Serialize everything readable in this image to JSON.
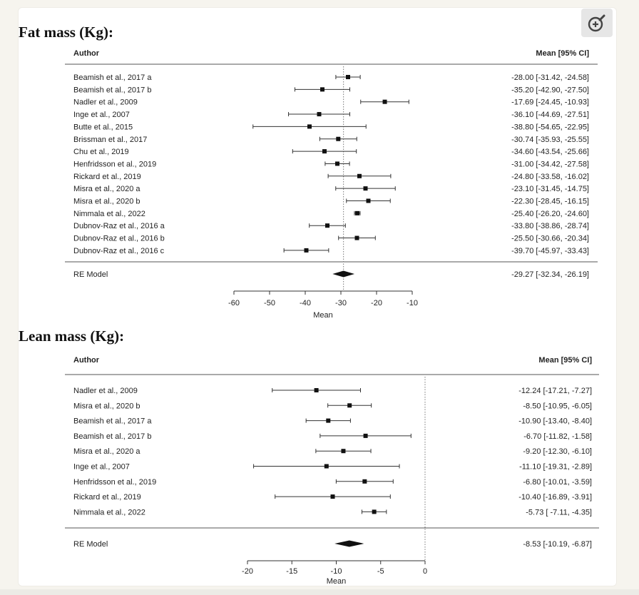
{
  "zoom_button": {
    "icon": "zoom-in-icon"
  },
  "chart_data": [
    {
      "type": "forest",
      "title": "Fat mass (Kg):",
      "col_author": "Author",
      "col_ci": "Mean [95% CI]",
      "xlabel": "Mean",
      "xlim": [
        -60,
        -10
      ],
      "xticks": [
        -60,
        -50,
        -40,
        -30,
        -20,
        -10
      ],
      "reference_line": -29.27,
      "studies": [
        {
          "author": "Beamish et al., 2017 a",
          "mean": -28.0,
          "lo": -31.42,
          "hi": -24.58,
          "label": "-28.00 [-31.42, -24.58]"
        },
        {
          "author": "Beamish et al., 2017 b",
          "mean": -35.2,
          "lo": -42.9,
          "hi": -27.5,
          "label": "-35.20 [-42.90, -27.50]"
        },
        {
          "author": "Nadler et al., 2009",
          "mean": -17.69,
          "lo": -24.45,
          "hi": -10.93,
          "label": "-17.69 [-24.45, -10.93]"
        },
        {
          "author": "Inge et al., 2007",
          "mean": -36.1,
          "lo": -44.69,
          "hi": -27.51,
          "label": "-36.10 [-44.69, -27.51]"
        },
        {
          "author": "Butte et al., 2015",
          "mean": -38.8,
          "lo": -54.65,
          "hi": -22.95,
          "label": "-38.80 [-54.65, -22.95]"
        },
        {
          "author": "Brissman et al., 2017",
          "mean": -30.74,
          "lo": -35.93,
          "hi": -25.55,
          "label": "-30.74 [-35.93, -25.55]"
        },
        {
          "author": "Chu et al., 2019",
          "mean": -34.6,
          "lo": -43.54,
          "hi": -25.66,
          "label": "-34.60 [-43.54, -25.66]"
        },
        {
          "author": "Henfridsson et al., 2019",
          "mean": -31.0,
          "lo": -34.42,
          "hi": -27.58,
          "label": "-31.00 [-34.42, -27.58]"
        },
        {
          "author": "Rickard et al., 2019",
          "mean": -24.8,
          "lo": -33.58,
          "hi": -16.02,
          "label": "-24.80 [-33.58, -16.02]"
        },
        {
          "author": "Misra et al., 2020 a",
          "mean": -23.1,
          "lo": -31.45,
          "hi": -14.75,
          "label": "-23.10 [-31.45, -14.75]"
        },
        {
          "author": "Misra et al., 2020 b",
          "mean": -22.3,
          "lo": -28.45,
          "hi": -16.15,
          "label": "-22.30 [-28.45, -16.15]"
        },
        {
          "author": "Nimmala et al., 2022",
          "mean": -25.4,
          "lo": -26.2,
          "hi": -24.6,
          "label": "-25.40 [-26.20, -24.60]"
        },
        {
          "author": "Dubnov-Raz et al., 2016 a",
          "mean": -33.8,
          "lo": -38.86,
          "hi": -28.74,
          "label": "-33.80 [-38.86, -28.74]"
        },
        {
          "author": "Dubnov-Raz et al., 2016 b",
          "mean": -25.5,
          "lo": -30.66,
          "hi": -20.34,
          "label": "-25.50 [-30.66, -20.34]"
        },
        {
          "author": "Dubnov-Raz et al., 2016 c",
          "mean": -39.7,
          "lo": -45.97,
          "hi": -33.43,
          "label": "-39.70 [-45.97, -33.43]"
        }
      ],
      "summary": {
        "author": "RE Model",
        "mean": -29.27,
        "lo": -32.34,
        "hi": -26.19,
        "label": "-29.27 [-32.34, -26.19]"
      }
    },
    {
      "type": "forest",
      "title": "Lean mass (Kg):",
      "col_author": "Author",
      "col_ci": "Mean [95% CI]",
      "xlabel": "Mean",
      "xlim": [
        -20,
        0
      ],
      "xticks": [
        -20,
        -15,
        -10,
        -5,
        0
      ],
      "reference_line": 0,
      "studies": [
        {
          "author": "Nadler et al., 2009",
          "mean": -12.24,
          "lo": -17.21,
          "hi": -7.27,
          "label": "-12.24 [-17.21, -7.27]"
        },
        {
          "author": "Misra et al., 2020 b",
          "mean": -8.5,
          "lo": -10.95,
          "hi": -6.05,
          "label": "-8.50 [-10.95, -6.05]"
        },
        {
          "author": "Beamish et al., 2017 a",
          "mean": -10.9,
          "lo": -13.4,
          "hi": -8.4,
          "label": "-10.90 [-13.40, -8.40]"
        },
        {
          "author": "Beamish et al., 2017 b",
          "mean": -6.7,
          "lo": -11.82,
          "hi": -1.58,
          "label": "-6.70 [-11.82, -1.58]"
        },
        {
          "author": "Misra et al., 2020 a",
          "mean": -9.2,
          "lo": -12.3,
          "hi": -6.1,
          "label": "-9.20 [-12.30, -6.10]"
        },
        {
          "author": "Inge et al., 2007",
          "mean": -11.1,
          "lo": -19.31,
          "hi": -2.89,
          "label": "-11.10 [-19.31, -2.89]"
        },
        {
          "author": "Henfridsson et al., 2019",
          "mean": -6.8,
          "lo": -10.01,
          "hi": -3.59,
          "label": "-6.80 [-10.01, -3.59]"
        },
        {
          "author": "Rickard et al., 2019",
          "mean": -10.4,
          "lo": -16.89,
          "hi": -3.91,
          "label": "-10.40 [-16.89, -3.91]"
        },
        {
          "author": "Nimmala et al., 2022",
          "mean": -5.73,
          "lo": -7.11,
          "hi": -4.35,
          "label": "-5.73 [ -7.11, -4.35]"
        }
      ],
      "summary": {
        "author": "RE Model",
        "mean": -8.53,
        "lo": -10.19,
        "hi": -6.87,
        "label": "-8.53 [-10.19, -6.87]"
      }
    }
  ]
}
